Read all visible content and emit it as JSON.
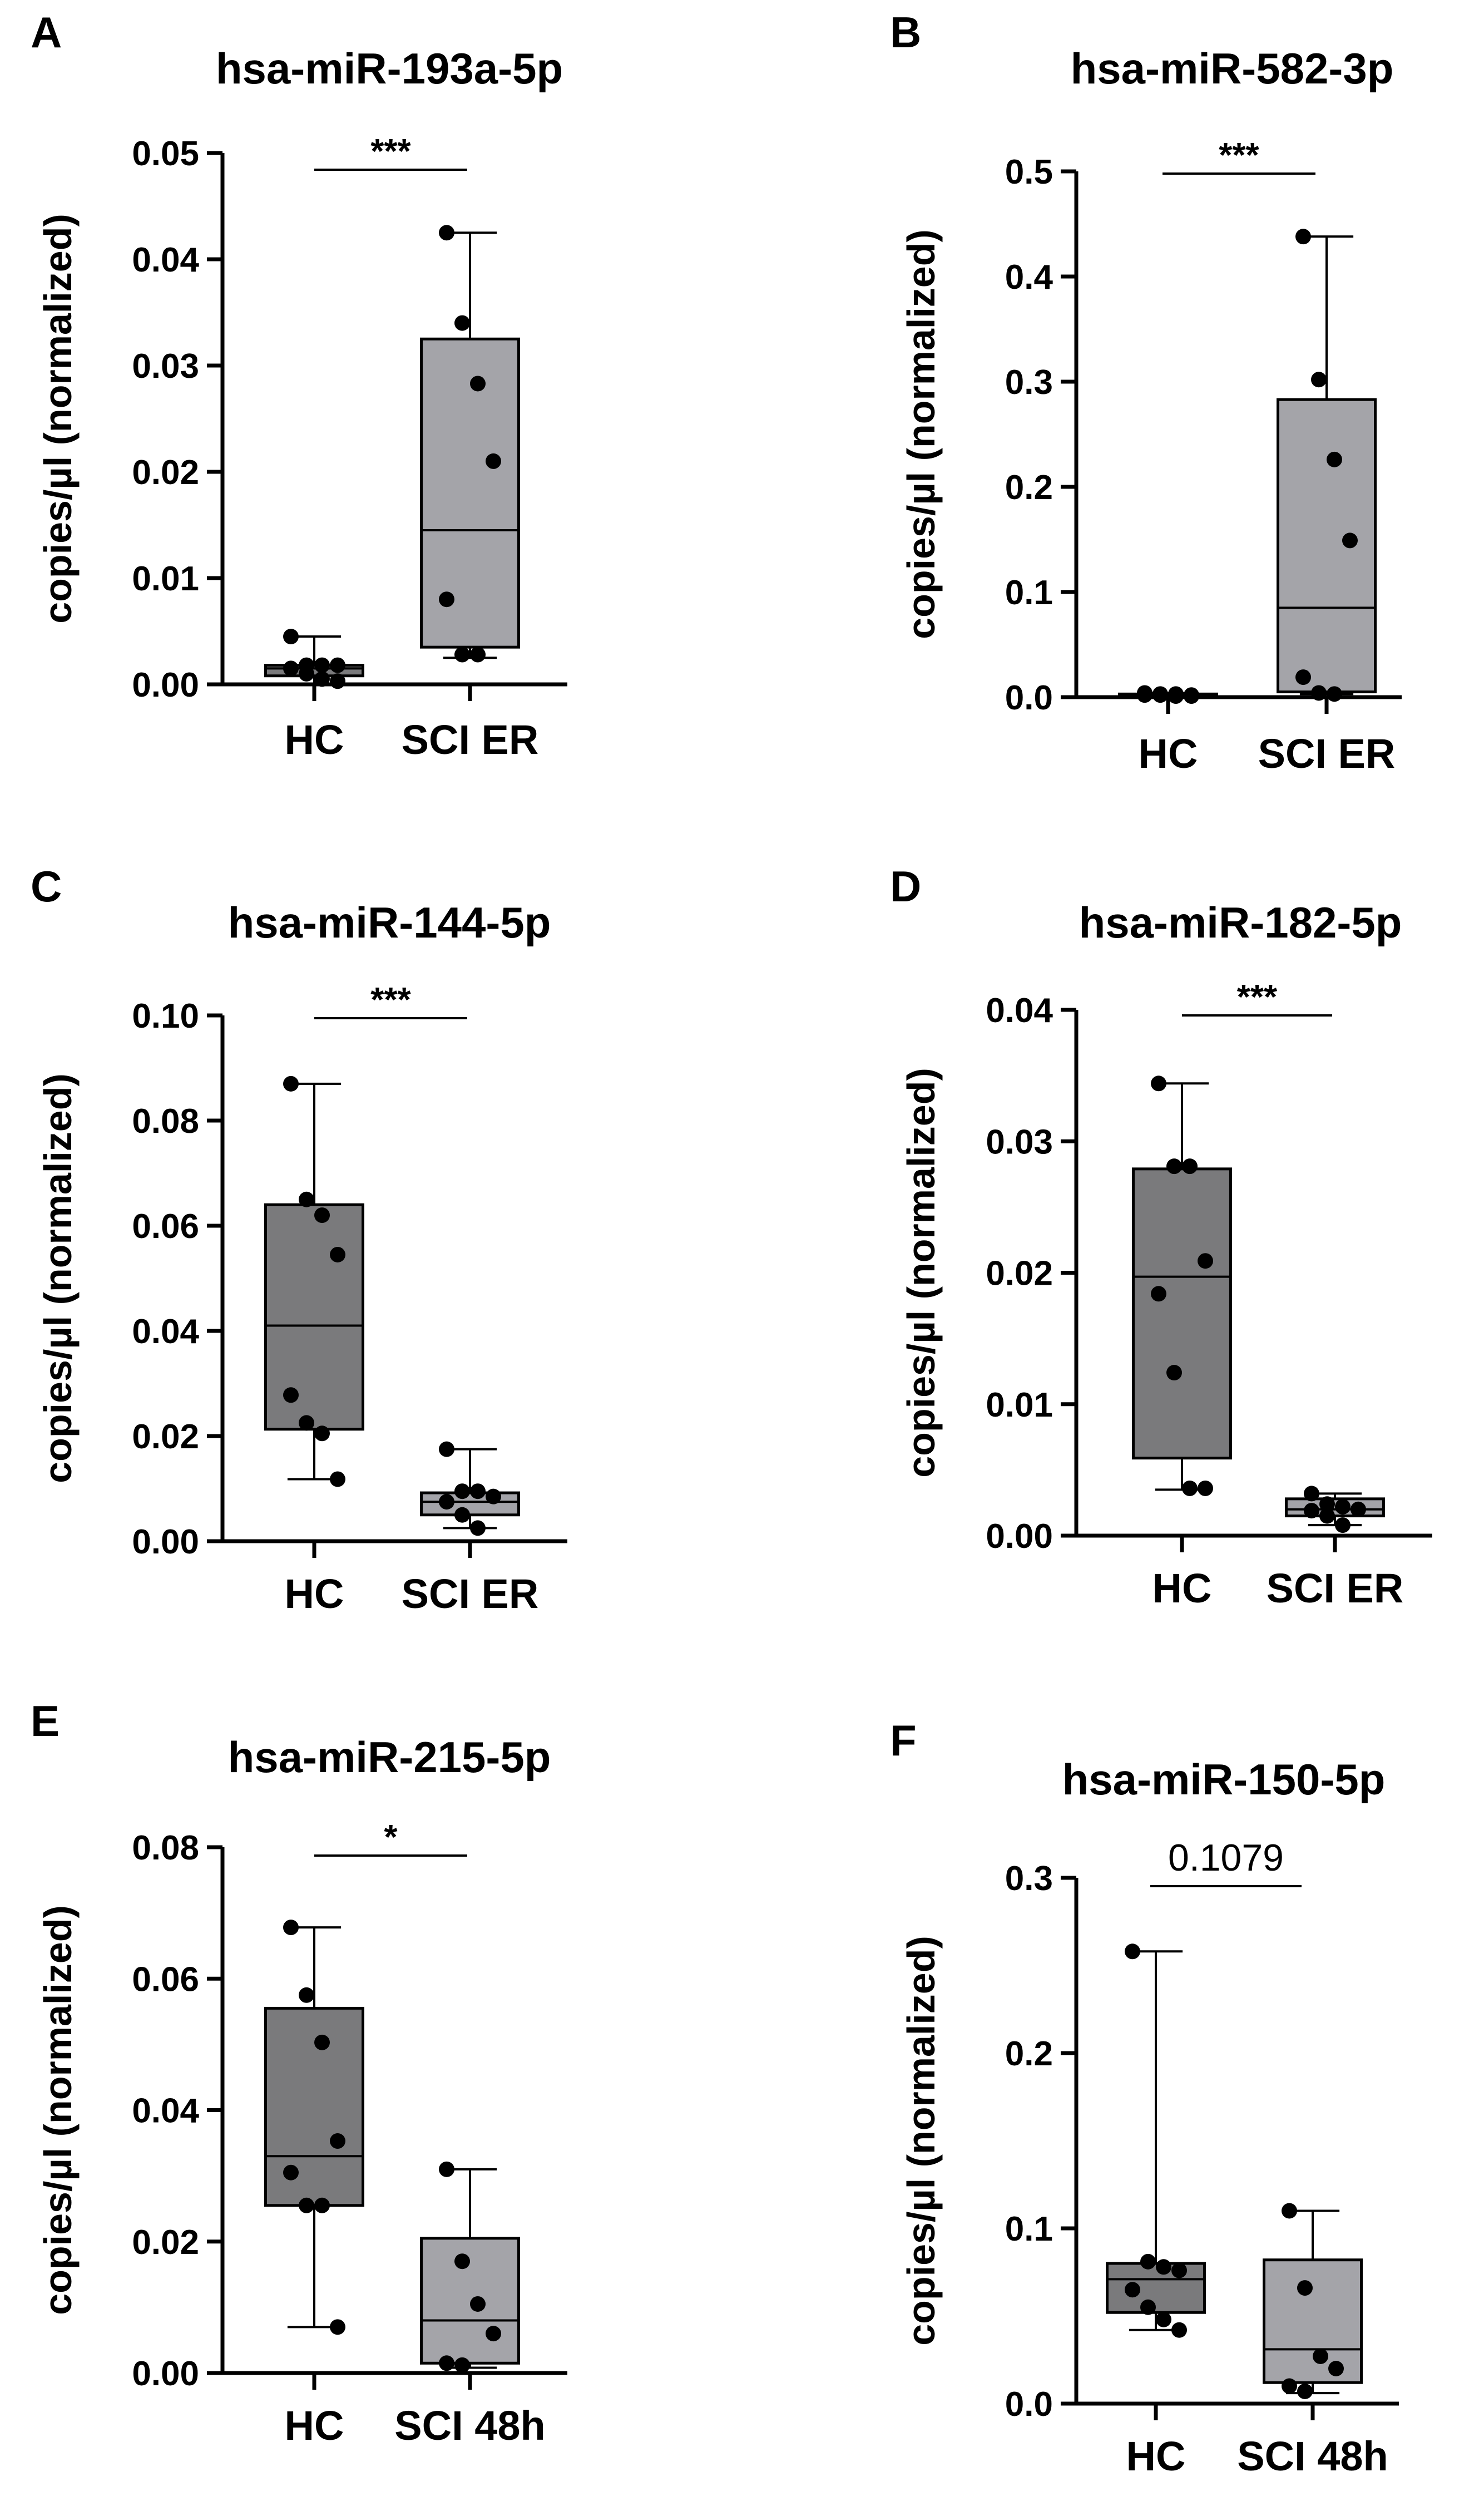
{
  "figure": {
    "y_axis_label": "copies/µl (normalized)"
  },
  "colors": {
    "hc_box": "#7a7a7c",
    "sci_box": "#a4a4a9",
    "stroke": "#000000",
    "point": "#000000"
  },
  "chart_data": [
    {
      "panel": "A",
      "title": "hsa-miR-193a-5p",
      "type": "box",
      "ylabel": "copies/µl (normalized)",
      "ylim": [
        0,
        0.05
      ],
      "yticks": [
        0.0,
        0.01,
        0.02,
        0.03,
        0.04,
        0.05
      ],
      "ytick_decimals": 2,
      "significance": "***",
      "groups": [
        {
          "name": "HC",
          "color": "#7a7a7c",
          "min": 0.0,
          "q1": 0.0008,
          "median": 0.0015,
          "q3": 0.0018,
          "max": 0.0045,
          "points": [
            0.0045,
            0.0018,
            0.0018,
            0.0018,
            0.0015,
            0.001,
            0.0005,
            0.0003
          ]
        },
        {
          "name": "SCI ER",
          "color": "#a4a4a9",
          "min": 0.0025,
          "q1": 0.0035,
          "median": 0.0145,
          "q3": 0.0325,
          "max": 0.0425,
          "points": [
            0.0425,
            0.034,
            0.0283,
            0.021,
            0.008,
            0.0028,
            0.0028
          ]
        }
      ]
    },
    {
      "panel": "B",
      "title": "hsa-miR-582-3p",
      "type": "box",
      "ylabel": "copies/µl (normalized)",
      "ylim": [
        0,
        0.5
      ],
      "yticks": [
        0.0,
        0.1,
        0.2,
        0.3,
        0.4,
        0.5
      ],
      "ytick_decimals": 1,
      "significance": "***",
      "groups": [
        {
          "name": "HC",
          "color": "#7a7a7c",
          "min": 0.0,
          "q1": 0.0,
          "median": 0.002,
          "q3": 0.003,
          "max": 0.004,
          "points": [
            0.004,
            0.003,
            0.003,
            0.002,
            0.002,
            0.002,
            0.001,
            0.001
          ]
        },
        {
          "name": "SCI ER",
          "color": "#a4a4a9",
          "min": 0.003,
          "q1": 0.005,
          "median": 0.085,
          "q3": 0.283,
          "max": 0.438,
          "points": [
            0.438,
            0.302,
            0.226,
            0.149,
            0.019,
            0.004,
            0.003
          ]
        }
      ]
    },
    {
      "panel": "C",
      "title": "hsa-miR-144-5p",
      "type": "box",
      "ylabel": "copies/µl (normalized)",
      "ylim": [
        0,
        0.1
      ],
      "yticks": [
        0.0,
        0.02,
        0.04,
        0.06,
        0.08,
        0.1
      ],
      "ytick_decimals": 2,
      "significance": "***",
      "groups": [
        {
          "name": "HC",
          "color": "#7a7a7c",
          "min": 0.0118,
          "q1": 0.0213,
          "median": 0.041,
          "q3": 0.064,
          "max": 0.087,
          "points": [
            0.087,
            0.065,
            0.062,
            0.0545,
            0.0278,
            0.0225,
            0.0205,
            0.0118
          ]
        },
        {
          "name": "SCI ER",
          "color": "#a4a4a9",
          "min": 0.0025,
          "q1": 0.005,
          "median": 0.0075,
          "q3": 0.0092,
          "max": 0.0175,
          "points": [
            0.0175,
            0.0095,
            0.0095,
            0.0085,
            0.0075,
            0.005,
            0.0025
          ]
        }
      ]
    },
    {
      "panel": "D",
      "title": "hsa-miR-182-5p",
      "type": "box",
      "ylabel": "copies/µl (normalized)",
      "ylim": [
        0,
        0.04
      ],
      "yticks": [
        0.0,
        0.01,
        0.02,
        0.03,
        0.04
      ],
      "ytick_decimals": 2,
      "significance": "***",
      "groups": [
        {
          "name": "HC",
          "color": "#7a7a7c",
          "min": 0.0035,
          "q1": 0.0059,
          "median": 0.0197,
          "q3": 0.0279,
          "max": 0.0344,
          "points": [
            0.0344,
            0.0281,
            0.0281,
            0.0209,
            0.0184,
            0.0124,
            0.0036,
            0.0036
          ]
        },
        {
          "name": "SCI ER",
          "color": "#a4a4a9",
          "min": 0.0008,
          "q1": 0.0015,
          "median": 0.002,
          "q3": 0.0028,
          "max": 0.0032,
          "points": [
            0.0032,
            0.0024,
            0.0022,
            0.002,
            0.0019,
            0.0015,
            0.0008
          ]
        }
      ]
    },
    {
      "panel": "E",
      "title": "hsa-miR-215-5p",
      "type": "box",
      "ylabel": "copies/µl (normalized)",
      "ylim": [
        0,
        0.08
      ],
      "yticks": [
        0.0,
        0.02,
        0.04,
        0.06,
        0.08
      ],
      "ytick_decimals": 2,
      "significance": "*",
      "groups": [
        {
          "name": "HC",
          "color": "#7a7a7c",
          "min": 0.007,
          "q1": 0.0255,
          "median": 0.033,
          "q3": 0.0555,
          "max": 0.0678,
          "points": [
            0.0678,
            0.0575,
            0.0503,
            0.0353,
            0.0305,
            0.0255,
            0.0255,
            0.007
          ]
        },
        {
          "name": "SCI 48h",
          "color": "#a4a4a9",
          "min": 0.0008,
          "q1": 0.0015,
          "median": 0.008,
          "q3": 0.0205,
          "max": 0.031,
          "points": [
            0.031,
            0.017,
            0.0105,
            0.006,
            0.0015,
            0.0012
          ]
        }
      ]
    },
    {
      "panel": "F",
      "title": "hsa-miR-150-5p",
      "type": "box",
      "ylabel": "copies/µl (normalized)",
      "ylim": [
        0,
        0.3
      ],
      "yticks": [
        0.0,
        0.1,
        0.2,
        0.3
      ],
      "ytick_decimals": 1,
      "significance": "0.1079",
      "groups": [
        {
          "name": "HC",
          "color": "#7a7a7c",
          "min": 0.042,
          "q1": 0.052,
          "median": 0.071,
          "q3": 0.08,
          "max": 0.258,
          "points": [
            0.258,
            0.081,
            0.078,
            0.076,
            0.065,
            0.055,
            0.048,
            0.042
          ]
        },
        {
          "name": "SCI 48h",
          "color": "#a4a4a9",
          "min": 0.006,
          "q1": 0.012,
          "median": 0.031,
          "q3": 0.082,
          "max": 0.11,
          "points": [
            0.11,
            0.066,
            0.027,
            0.02,
            0.01,
            0.007
          ]
        }
      ]
    }
  ]
}
